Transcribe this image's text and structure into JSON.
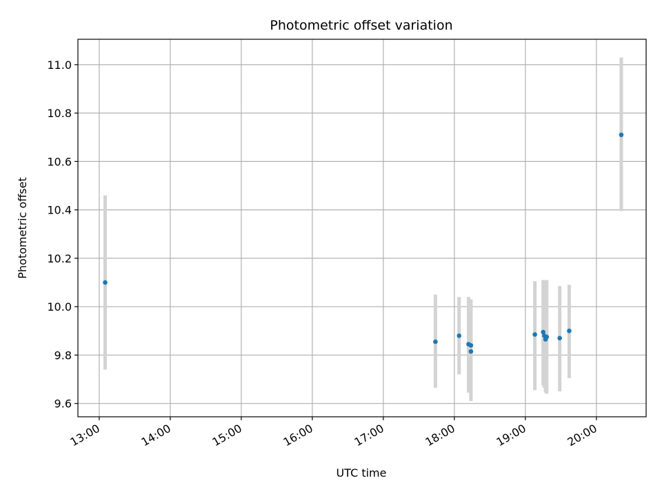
{
  "chart_data": {
    "type": "scatter",
    "title": "Photometric offset variation",
    "xlabel": "UTC time",
    "ylabel": "Photometric offset",
    "x_axis_kind": "time",
    "xlim": [
      "12:42",
      "20:42"
    ],
    "ylim": [
      9.545,
      11.105
    ],
    "xticks": [
      "13:00",
      "14:00",
      "15:00",
      "16:00",
      "17:00",
      "18:00",
      "19:00",
      "20:00"
    ],
    "yticks": [
      "9.6",
      "9.8",
      "10.0",
      "10.2",
      "10.4",
      "10.6",
      "10.8",
      "11.0"
    ],
    "grid": true,
    "marker_color": "#1f77b4",
    "errorbar_color": "#d3d3d3",
    "series": [
      {
        "points": [
          {
            "x": "13:05",
            "y": 10.1,
            "ylow": 9.74,
            "yhigh": 10.46
          },
          {
            "x": "17:44",
            "y": 9.855,
            "ylow": 9.665,
            "yhigh": 10.05
          },
          {
            "x": "18:04",
            "y": 9.88,
            "ylow": 9.72,
            "yhigh": 10.04
          },
          {
            "x": "18:12",
            "y": 9.845,
            "ylow": 9.645,
            "yhigh": 10.04
          },
          {
            "x": "18:14",
            "y": 9.84,
            "ylow": 9.61,
            "yhigh": 10.03
          },
          {
            "x": "18:14",
            "y": 9.815,
            "ylow": 9.61,
            "yhigh": 10.03
          },
          {
            "x": "19:08",
            "y": 9.885,
            "ylow": 9.655,
            "yhigh": 10.105
          },
          {
            "x": "19:15",
            "y": 9.895,
            "ylow": 9.675,
            "yhigh": 10.11
          },
          {
            "x": "19:16",
            "y": 9.88,
            "ylow": 9.665,
            "yhigh": 10.105
          },
          {
            "x": "19:17",
            "y": 9.865,
            "ylow": 9.645,
            "yhigh": 10.105
          },
          {
            "x": "19:18",
            "y": 9.875,
            "ylow": 9.64,
            "yhigh": 10.11
          },
          {
            "x": "19:29",
            "y": 9.87,
            "ylow": 9.65,
            "yhigh": 10.085
          },
          {
            "x": "19:37",
            "y": 9.9,
            "ylow": 9.705,
            "yhigh": 10.09
          },
          {
            "x": "20:21",
            "y": 10.71,
            "ylow": 10.395,
            "yhigh": 11.03
          }
        ]
      }
    ]
  }
}
